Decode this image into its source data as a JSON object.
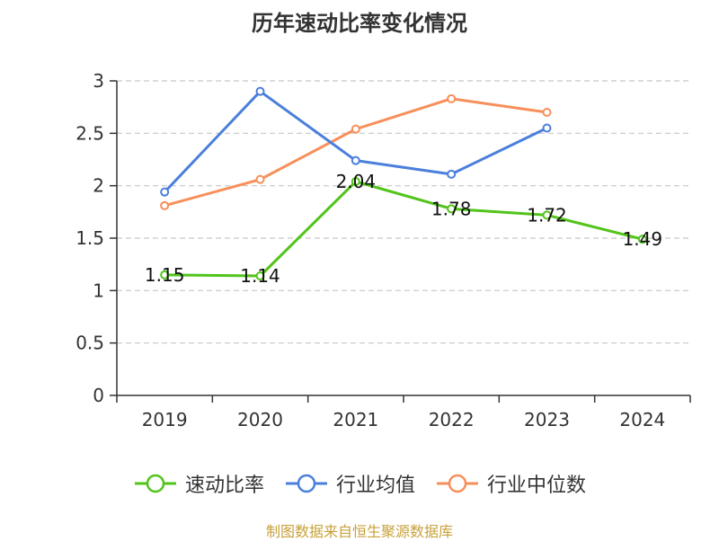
{
  "title": "历年速动比率变化情况",
  "source": "制图数据来自恒生聚源数据库",
  "colors": {
    "series1": "#52c41a",
    "series2": "#4a7fdc",
    "series3": "#f78f5a",
    "grid": "#c8c8c8",
    "axis": "#333333"
  },
  "chart_data": {
    "type": "line",
    "title": "历年速动比率变化情况",
    "xlabel": "",
    "ylabel": "",
    "categories": [
      "2019",
      "2020",
      "2021",
      "2022",
      "2023",
      "2024"
    ],
    "ylim": [
      0,
      3
    ],
    "yticks": [
      "0",
      "0.5",
      "1",
      "1.5",
      "2",
      "2.5",
      "3"
    ],
    "grid": true,
    "legend_position": "bottom",
    "series": [
      {
        "name": "速动比率",
        "values": [
          1.15,
          1.14,
          2.04,
          1.78,
          1.72,
          1.49
        ],
        "labels": [
          "1.15",
          "1.14",
          "2.04",
          "1.78",
          "1.72",
          "1.49"
        ]
      },
      {
        "name": "行业均值",
        "values": [
          1.94,
          2.9,
          2.24,
          2.11,
          2.55,
          null
        ]
      },
      {
        "name": "行业中位数",
        "values": [
          1.81,
          2.06,
          2.54,
          2.83,
          2.7,
          null
        ]
      }
    ]
  }
}
